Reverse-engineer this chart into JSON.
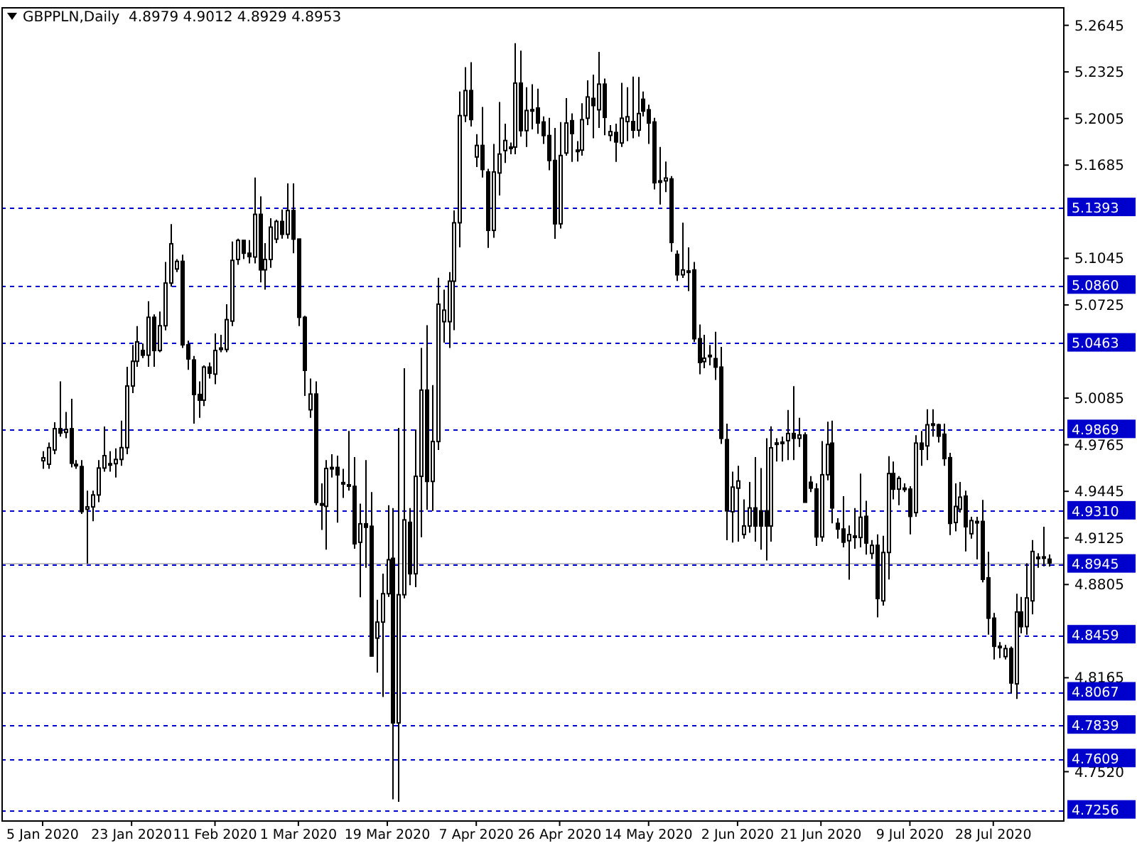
{
  "chart_data": {
    "type": "candlestick",
    "title": "GBPPLN,Daily  4.8979 4.9012 4.8929 4.8953",
    "color": "#000000",
    "categories": [
      "5 Jan 2020",
      null,
      null,
      null,
      null,
      null,
      null,
      null,
      null,
      null,
      null,
      null,
      null,
      null,
      null,
      null,
      "23 Jan 2020",
      null,
      null,
      null,
      null,
      null,
      null,
      null,
      null,
      null,
      null,
      null,
      null,
      null,
      null,
      "11 Feb 2020",
      null,
      null,
      null,
      null,
      null,
      null,
      null,
      null,
      null,
      null,
      null,
      null,
      null,
      null,
      "1 Mar 2020",
      null,
      null,
      null,
      null,
      null,
      null,
      null,
      null,
      null,
      null,
      null,
      null,
      null,
      null,
      null,
      "19 Mar 2020",
      null,
      null,
      null,
      null,
      null,
      null,
      null,
      null,
      null,
      null,
      null,
      null,
      null,
      null,
      null,
      "7 Apr 2020",
      null,
      null,
      null,
      null,
      null,
      null,
      null,
      null,
      null,
      null,
      null,
      null,
      null,
      null,
      "26 Apr 2020",
      null,
      null,
      null,
      null,
      null,
      null,
      null,
      null,
      null,
      null,
      null,
      null,
      null,
      null,
      null,
      "14 May 2020",
      null,
      null,
      null,
      null,
      null,
      null,
      null,
      null,
      null,
      null,
      null,
      null,
      null,
      null,
      null,
      "2 Jun 2020",
      null,
      null,
      null,
      null,
      null,
      null,
      null,
      null,
      null,
      null,
      null,
      null,
      null,
      null,
      "21 Jun 2020",
      null,
      null,
      null,
      null,
      null,
      null,
      null,
      null,
      null,
      null,
      null,
      null,
      null,
      null,
      null,
      "9 Jul 2020",
      null,
      null,
      null,
      null,
      null,
      null,
      null,
      null,
      null,
      null,
      null,
      null,
      null,
      null,
      "28 Jul 2020",
      null,
      null,
      null,
      null,
      null,
      null,
      null,
      null,
      null,
      null
    ],
    "ohlc": [
      [
        4.9655,
        4.972,
        4.96,
        4.9675
      ],
      [
        4.9631,
        4.978,
        4.96,
        4.9745
      ],
      [
        4.9729,
        4.992,
        4.97,
        4.9875
      ],
      [
        4.9875,
        5.02,
        4.982,
        4.9845
      ],
      [
        4.985,
        4.999,
        4.981,
        4.987
      ],
      [
        4.9875,
        5.008,
        4.961,
        4.9638
      ],
      [
        4.963,
        4.966,
        4.96,
        4.9625
      ],
      [
        4.9615,
        4.966,
        4.929,
        4.9306
      ],
      [
        4.9322,
        4.945,
        4.8948,
        4.9338
      ],
      [
        4.9338,
        4.945,
        4.924,
        4.942
      ],
      [
        4.942,
        4.966,
        4.937,
        4.9605
      ],
      [
        4.9605,
        4.989,
        4.958,
        4.969
      ],
      [
        4.9625,
        4.972,
        4.958,
        4.9635
      ],
      [
        4.9635,
        4.974,
        4.954,
        4.9664
      ],
      [
        4.9664,
        4.993,
        4.962,
        4.9745
      ],
      [
        4.9745,
        5.03,
        4.97,
        5.0168
      ],
      [
        5.0168,
        5.045,
        5.012,
        5.0338
      ],
      [
        5.0338,
        5.058,
        5.03,
        5.0471
      ],
      [
        5.0412,
        5.046,
        5.036,
        5.038
      ],
      [
        5.038,
        5.075,
        5.03,
        5.064
      ],
      [
        5.064,
        5.066,
        5.03,
        5.0412
      ],
      [
        5.0412,
        5.068,
        5.04,
        5.0582
      ],
      [
        5.0582,
        5.102,
        5.055,
        5.0875
      ],
      [
        5.0875,
        5.128,
        5.085,
        5.1145
      ],
      [
        5.0972,
        5.104,
        5.095,
        5.1024
      ],
      [
        5.1024,
        5.107,
        5.043,
        5.0451
      ],
      [
        5.0451,
        5.048,
        5.028,
        5.0354
      ],
      [
        5.0347,
        5.0375,
        4.991,
        5.011
      ],
      [
        5.011,
        5.02,
        4.995,
        5.0071
      ],
      [
        5.0071,
        5.031,
        5.003,
        5.0298
      ],
      [
        5.0298,
        5.033,
        5.022,
        5.0256
      ],
      [
        5.025,
        5.053,
        5.018,
        5.0412
      ],
      [
        5.0419,
        5.052,
        5.04,
        5.0429
      ],
      [
        5.0419,
        5.073,
        5.04,
        5.0624
      ],
      [
        5.0614,
        5.116,
        5.058,
        5.1031
      ],
      [
        5.1037,
        5.118,
        5.1,
        5.1168
      ],
      [
        5.1168,
        5.117,
        5.104,
        5.108
      ],
      [
        5.108,
        5.117,
        5.101,
        5.1057
      ],
      [
        5.1054,
        5.16,
        5.101,
        5.1347
      ],
      [
        5.1347,
        5.147,
        5.088,
        5.0966
      ],
      [
        5.0966,
        5.115,
        5.083,
        5.1037
      ],
      [
        5.1037,
        5.132,
        5.098,
        5.1259
      ],
      [
        5.1177,
        5.131,
        5.115,
        5.1298
      ],
      [
        5.1298,
        5.138,
        5.118,
        5.121
      ],
      [
        5.121,
        5.156,
        5.118,
        5.1373
      ],
      [
        5.1373,
        5.156,
        5.108,
        5.1177
      ],
      [
        5.1177,
        5.118,
        5.058,
        5.064
      ],
      [
        5.064,
        5.065,
        5.01,
        5.0276
      ],
      [
        5.0005,
        5.022,
        4.995,
        5.0113
      ],
      [
        5.0113,
        5.02,
        4.935,
        4.9369
      ],
      [
        4.936,
        4.95,
        4.918,
        4.935
      ],
      [
        4.9342,
        4.966,
        4.9044,
        4.9602
      ],
      [
        4.9605,
        4.97,
        4.954,
        4.9609
      ],
      [
        4.9609,
        4.969,
        4.923,
        4.9558
      ],
      [
        4.9505,
        4.96,
        4.94,
        4.95
      ],
      [
        4.949,
        4.986,
        4.945,
        4.9486
      ],
      [
        4.9479,
        4.968,
        4.905,
        4.9085
      ],
      [
        4.9095,
        4.936,
        4.8718,
        4.9222
      ],
      [
        4.9222,
        4.966,
        4.892,
        4.9198
      ],
      [
        4.9205,
        4.944,
        4.831,
        4.8314
      ],
      [
        4.8437,
        4.87,
        4.82,
        4.8547
      ],
      [
        4.8547,
        4.888,
        4.8033,
        4.8742
      ],
      [
        4.8742,
        4.935,
        4.872,
        4.8975
      ],
      [
        4.8985,
        4.933,
        4.733,
        4.7855
      ],
      [
        4.7855,
        4.988,
        4.7313,
        4.8735
      ],
      [
        4.8735,
        5.029,
        4.871,
        4.9249
      ],
      [
        4.9232,
        4.933,
        4.88,
        4.8879
      ],
      [
        4.8879,
        4.987,
        4.8787,
        4.9548
      ],
      [
        4.9548,
        5.043,
        4.913,
        5.014
      ],
      [
        5.014,
        5.0586,
        4.9318,
        4.9513
      ],
      [
        4.9513,
        5.0175,
        4.931,
        4.9787
      ],
      [
        4.9787,
        5.0912,
        4.9729,
        5.073
      ],
      [
        5.061,
        5.083,
        5.0466,
        5.0689
      ],
      [
        5.061,
        5.095,
        5.043,
        5.0888
      ],
      [
        5.0888,
        5.1374,
        5.0552,
        5.1289
      ],
      [
        5.1289,
        5.219,
        5.112,
        5.2025
      ],
      [
        5.2025,
        5.2358,
        5.198,
        5.2197
      ],
      [
        5.2197,
        5.2392,
        5.195,
        5.1998
      ],
      [
        5.1741,
        5.1898,
        5.1672,
        5.182
      ],
      [
        5.182,
        5.2084,
        5.16,
        5.1655
      ],
      [
        5.1638,
        5.166,
        5.1117,
        5.1237
      ],
      [
        5.1237,
        5.183,
        5.1186,
        5.1638
      ],
      [
        5.1631,
        5.2118,
        5.1477,
        5.1761
      ],
      [
        5.1785,
        5.197,
        5.17,
        5.1854
      ],
      [
        5.1805,
        5.184,
        5.176,
        5.1809
      ],
      [
        5.1809,
        5.2522,
        5.176,
        5.2248
      ],
      [
        5.2248,
        5.2471,
        5.188,
        5.1922
      ],
      [
        5.1922,
        5.222,
        5.181,
        5.206
      ],
      [
        5.2062,
        5.224,
        5.193,
        5.2066
      ],
      [
        5.2077,
        5.221,
        5.19,
        5.1974
      ],
      [
        5.1981,
        5.202,
        5.183,
        5.1888
      ],
      [
        5.1888,
        5.201,
        5.165,
        5.1717
      ],
      [
        5.1717,
        5.194,
        5.1179,
        5.1282
      ],
      [
        5.1282,
        5.198,
        5.125,
        5.1751
      ],
      [
        5.1768,
        5.2145,
        5.175,
        5.1974
      ],
      [
        5.199,
        5.204,
        5.1707,
        5.1902
      ],
      [
        5.1785,
        5.185,
        5.171,
        5.1788
      ],
      [
        5.1788,
        5.211,
        5.175,
        5.1997
      ],
      [
        5.2007,
        5.2267,
        5.196,
        5.2153
      ],
      [
        5.2143,
        5.2306,
        5.187,
        5.2094
      ],
      [
        5.2065,
        5.2462,
        5.194,
        5.2241
      ],
      [
        5.2241,
        5.228,
        5.189,
        5.2013
      ],
      [
        5.1889,
        5.196,
        5.185,
        5.1915
      ],
      [
        5.1909,
        5.197,
        5.1707,
        5.1844
      ],
      [
        5.1837,
        5.225,
        5.181,
        5.2007
      ],
      [
        5.1984,
        5.222,
        5.185,
        5.2017
      ],
      [
        5.1984,
        5.2293,
        5.187,
        5.1925
      ],
      [
        5.1925,
        5.229,
        5.188,
        5.2039
      ],
      [
        5.2137,
        5.219,
        5.202,
        5.2056
      ],
      [
        5.2065,
        5.21,
        5.183,
        5.1974
      ],
      [
        5.1981,
        5.201,
        5.1518,
        5.1564
      ],
      [
        5.1575,
        5.181,
        5.1414,
        5.1577
      ],
      [
        5.1577,
        5.171,
        5.15,
        5.1596
      ],
      [
        5.159,
        5.161,
        5.109,
        5.1154
      ],
      [
        5.1072,
        5.11,
        5.089,
        5.0932
      ],
      [
        5.0932,
        5.129,
        5.091,
        5.0965
      ],
      [
        5.0955,
        5.112,
        5.082,
        5.0958
      ],
      [
        5.0965,
        5.102,
        5.047,
        5.0493
      ],
      [
        5.0493,
        5.059,
        5.0249,
        5.033
      ],
      [
        5.0336,
        5.052,
        5.029,
        5.0359
      ],
      [
        5.0375,
        5.045,
        5.031,
        5.0379
      ],
      [
        5.0356,
        5.054,
        5.021,
        5.0298
      ],
      [
        5.0298,
        5.0437,
        4.977,
        4.9809
      ],
      [
        4.98,
        4.991,
        4.9109,
        4.9311
      ],
      [
        4.9305,
        4.958,
        4.9093,
        4.9474
      ],
      [
        4.9467,
        4.962,
        4.91,
        4.9516
      ],
      [
        4.9149,
        4.939,
        4.912,
        4.9207
      ],
      [
        4.9207,
        4.951,
        4.916,
        4.9331
      ],
      [
        4.9331,
        4.968,
        4.91,
        4.9207
      ],
      [
        4.9311,
        4.9604,
        4.9044,
        4.9207
      ],
      [
        4.9311,
        4.981,
        4.897,
        4.9207
      ],
      [
        4.9207,
        4.9891,
        4.91,
        4.9744
      ],
      [
        4.9775,
        4.981,
        4.965,
        4.9777
      ],
      [
        4.9781,
        4.982,
        4.965,
        4.9783
      ],
      [
        4.9793,
        5.0004,
        4.966,
        4.9842
      ],
      [
        4.9842,
        5.0167,
        4.966,
        4.9809
      ],
      [
        4.9809,
        4.995,
        4.975,
        4.9832
      ],
      [
        4.9832,
        4.985,
        4.937,
        4.937
      ],
      [
        4.9507,
        4.955,
        4.944,
        4.9467
      ],
      [
        4.9461,
        4.95,
        4.907,
        4.9132
      ],
      [
        4.9132,
        4.979,
        4.91,
        4.9559
      ],
      [
        4.9559,
        4.9923,
        4.952,
        4.9767
      ],
      [
        4.9776,
        4.993,
        4.9225,
        4.9331
      ],
      [
        4.9225,
        4.926,
        4.912,
        4.9186
      ],
      [
        4.9186,
        4.9412,
        4.906,
        4.9096
      ],
      [
        4.9106,
        4.921,
        4.8838,
        4.9148
      ],
      [
        4.9136,
        4.933,
        4.905,
        4.9138
      ],
      [
        4.9128,
        4.9567,
        4.906,
        4.9267
      ],
      [
        4.9273,
        4.938,
        4.901,
        4.909
      ],
      [
        4.9019,
        4.911,
        4.898,
        4.9074
      ],
      [
        4.9074,
        4.915,
        4.858,
        4.8709
      ],
      [
        4.8693,
        4.914,
        4.866,
        4.9025
      ],
      [
        4.9025,
        4.9686,
        4.884,
        4.9567
      ],
      [
        4.9567,
        4.965,
        4.939,
        4.946
      ],
      [
        4.946,
        4.955,
        4.935,
        4.9534
      ],
      [
        4.9465,
        4.95,
        4.944,
        4.9467
      ],
      [
        4.946,
        4.948,
        4.915,
        4.9273
      ],
      [
        4.9299,
        4.983,
        4.927,
        4.9776
      ],
      [
        4.9776,
        4.986,
        4.962,
        4.9734
      ],
      [
        4.9757,
        5.0008,
        4.966,
        4.9902
      ],
      [
        4.9906,
        5.0008,
        4.982,
        4.9908
      ],
      [
        4.9902,
        4.991,
        4.978,
        4.9824
      ],
      [
        4.9837,
        4.991,
        4.962,
        4.967
      ],
      [
        4.9676,
        4.971,
        4.9144,
        4.9225
      ],
      [
        4.9231,
        4.95,
        4.917,
        4.9341
      ],
      [
        4.9322,
        4.951,
        4.93,
        4.9405
      ],
      [
        4.9412,
        4.945,
        4.9032,
        4.9202
      ],
      [
        4.9154,
        4.927,
        4.912,
        4.9244
      ],
      [
        4.9236,
        4.927,
        4.8977,
        4.9238
      ],
      [
        4.9238,
        4.9386,
        4.882,
        4.8841
      ],
      [
        4.8851,
        4.903,
        4.8461,
        4.8574
      ],
      [
        4.8574,
        4.861,
        4.829,
        4.8381
      ],
      [
        4.8379,
        4.841,
        4.83,
        4.8381
      ],
      [
        4.831,
        4.839,
        4.829,
        4.8365
      ],
      [
        4.8365,
        4.838,
        4.8058,
        4.8129
      ],
      [
        4.8123,
        4.8742,
        4.802,
        4.8616
      ],
      [
        4.8616,
        4.872,
        4.847,
        4.8516
      ],
      [
        4.8516,
        4.895,
        4.846,
        4.8713
      ],
      [
        4.8693,
        4.911,
        4.86,
        4.9032
      ],
      [
        4.8991,
        4.902,
        4.892,
        4.8993
      ],
      [
        4.8993,
        4.9202,
        4.893,
        4.8995
      ],
      [
        4.8979,
        4.9012,
        4.8929,
        4.8953
      ]
    ],
    "ylim": [
      4.7186,
      5.277
    ],
    "yticks": [
      5.2645,
      5.2325,
      5.2005,
      5.1685,
      5.1045,
      5.0725,
      5.0085,
      4.9765,
      4.9445,
      4.9125,
      4.8805,
      4.8165,
      {
        "value": 4.752,
        "label": "4.7520"
      }
    ],
    "ref_lines": [
      {
        "axis": "y",
        "value": 5.1393,
        "label": "5.1393",
        "color": "#0000cd",
        "line_style": "dashed"
      },
      {
        "axis": "y",
        "value": 5.086,
        "label": "5.0860",
        "color": "#0000cd",
        "line_style": "dashed"
      },
      {
        "axis": "y",
        "value": 5.0463,
        "label": "5.0463",
        "color": "#0000cd",
        "line_style": "dashed"
      },
      {
        "axis": "y",
        "value": 4.9869,
        "label": "4.9869",
        "color": "#0000cd",
        "line_style": "dashed"
      },
      {
        "axis": "y",
        "value": 4.931,
        "label": "4.9310",
        "color": "#0000cd",
        "line_style": "dashed"
      },
      {
        "axis": "y",
        "value": 4.8953,
        "label": null,
        "color": "#c0c0c0",
        "line_style": "solid"
      },
      {
        "axis": "y",
        "value": 4.8945,
        "label": "4.8945",
        "color": "#0000cd",
        "line_style": "dashed"
      },
      {
        "axis": "y",
        "value": 4.8459,
        "label": "4.8459",
        "color": "#0000cd",
        "line_style": "dashed"
      },
      {
        "axis": "y",
        "value": 4.8067,
        "label": "4.8067",
        "color": "#0000cd",
        "line_style": "dashed"
      },
      {
        "axis": "y",
        "value": 4.7839,
        "label": "4.7839",
        "color": "#0000cd",
        "line_style": "dashed"
      },
      {
        "axis": "y",
        "value": 4.7609,
        "label": "4.7609",
        "color": "#0000cd",
        "line_style": "dashed"
      },
      {
        "axis": "y",
        "value": 4.7256,
        "label": "4.7256",
        "color": "#0000cd",
        "line_style": "dashed"
      }
    ]
  }
}
